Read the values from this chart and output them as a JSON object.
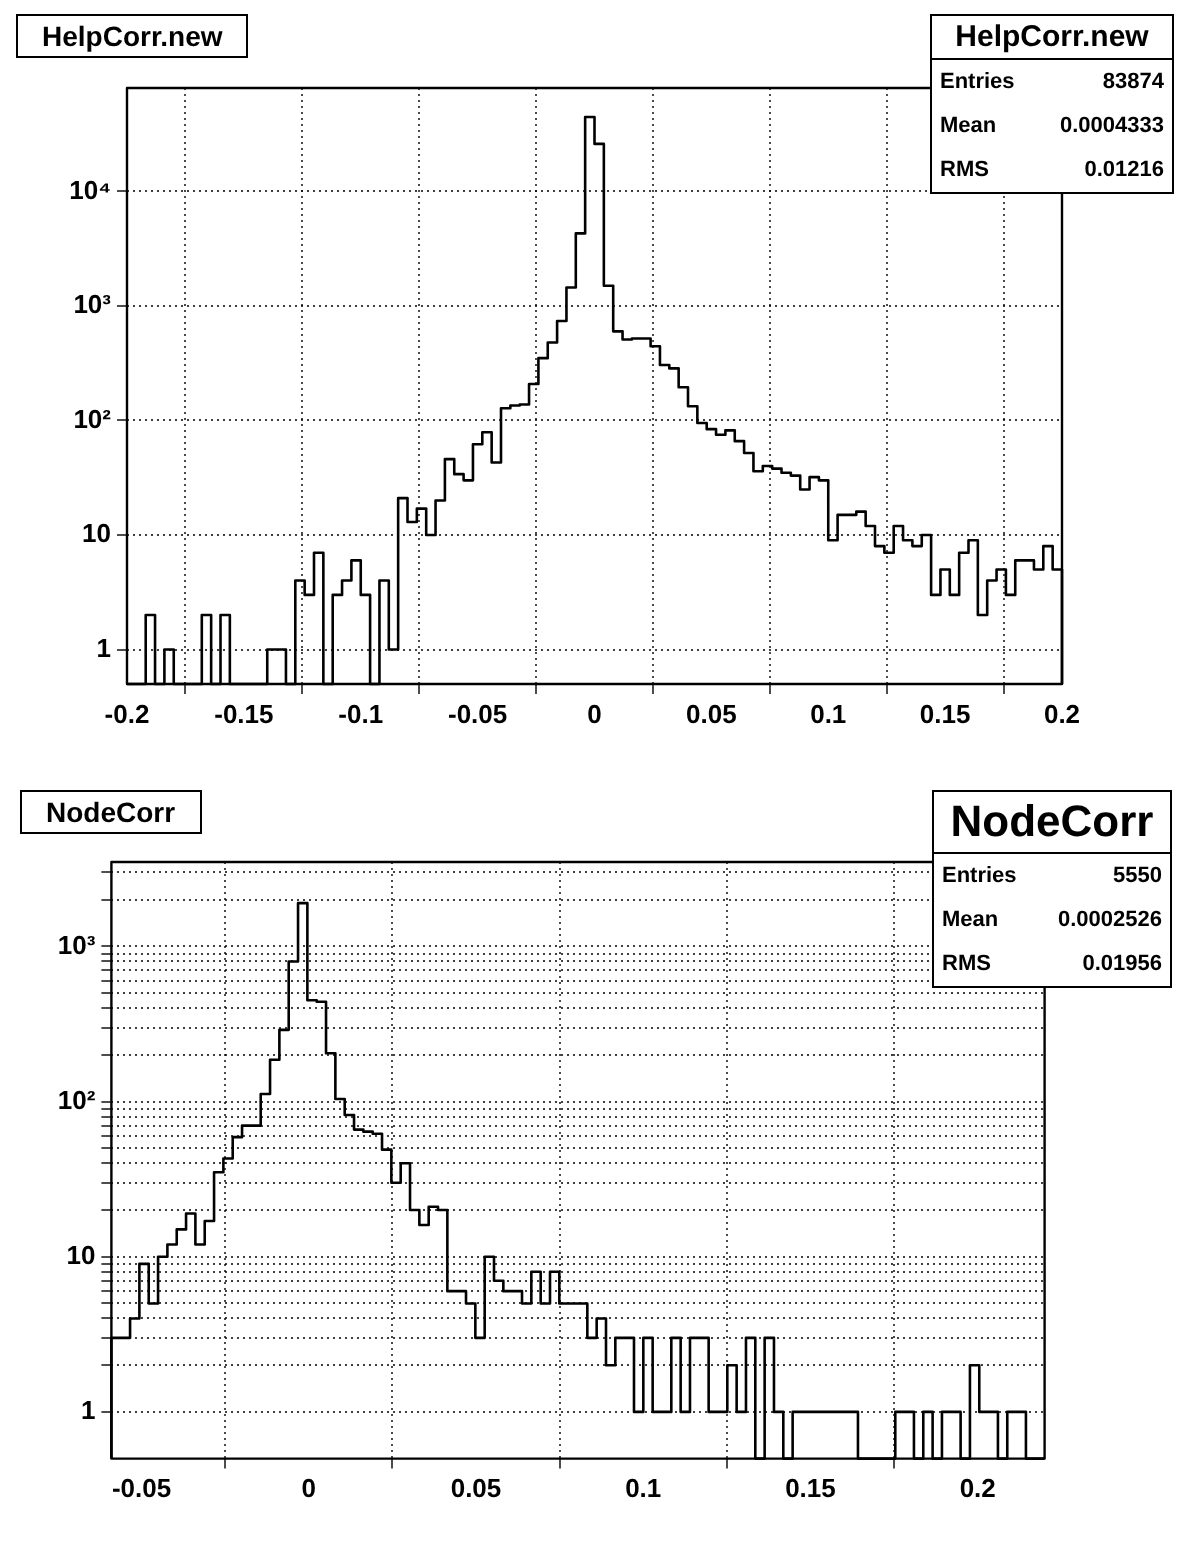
{
  "chart_data": [
    {
      "type": "histogram",
      "title": "HelpCorr.new",
      "color": "#000000",
      "log": "y",
      "grid": true,
      "annotations": [
        "HelpCorr.new",
        "Entries",
        "83874",
        "Mean",
        "0.0004333",
        "RMS",
        "0.01216"
      ],
      "bins": [
        -0.2,
        -0.196,
        -0.192,
        -0.188,
        -0.184,
        -0.18,
        -0.176,
        -0.172,
        -0.168,
        -0.164,
        -0.16,
        -0.156,
        -0.152,
        -0.148,
        -0.144,
        -0.14,
        -0.136,
        -0.132,
        -0.128,
        -0.124,
        -0.12,
        -0.116,
        -0.112,
        -0.108,
        -0.104,
        -0.1,
        -0.096,
        -0.092,
        -0.088,
        -0.084,
        -0.08,
        -0.076,
        -0.072,
        -0.068,
        -0.064,
        -0.06,
        -0.056,
        -0.052,
        -0.048,
        -0.044,
        -0.04,
        -0.036,
        -0.032,
        -0.028,
        -0.024,
        -0.02,
        -0.016,
        -0.012,
        -0.008,
        -0.004,
        0,
        0.004,
        0.008,
        0.012,
        0.016,
        0.02,
        0.024,
        0.028,
        0.032,
        0.036,
        0.04,
        0.044,
        0.048,
        0.052,
        0.056,
        0.06,
        0.064,
        0.068,
        0.072,
        0.076,
        0.08,
        0.084,
        0.088,
        0.092,
        0.096,
        0.1,
        0.104,
        0.108,
        0.112,
        0.116,
        0.12,
        0.124,
        0.128,
        0.132,
        0.136,
        0.14,
        0.144,
        0.148,
        0.152,
        0.156,
        0.16,
        0.164,
        0.168,
        0.172,
        0.176,
        0.18,
        0.184,
        0.188,
        0.192,
        0.196,
        0.2
      ],
      "values": [
        null,
        null,
        2,
        null,
        1,
        null,
        null,
        null,
        2,
        null,
        2,
        null,
        null,
        null,
        null,
        1,
        1,
        null,
        4,
        3,
        7,
        null,
        3,
        4,
        6,
        3,
        null,
        4,
        1,
        21,
        13,
        17,
        10,
        20,
        46,
        34,
        30,
        62,
        79,
        43,
        128,
        135,
        138,
        208,
        350,
        480,
        740,
        1450,
        4300,
        44600,
        26000,
        1500,
        600,
        510,
        520,
        520,
        445,
        305,
        285,
        195,
        133,
        95,
        84,
        75,
        82,
        66,
        52,
        36,
        40,
        38,
        35,
        33,
        25,
        32,
        30,
        9,
        15,
        15,
        16,
        12,
        8,
        7,
        12,
        9,
        8,
        10,
        3,
        5,
        3,
        7,
        9,
        2,
        4,
        5,
        3,
        6,
        6,
        5,
        8,
        5
      ],
      "xlim": [
        -0.2,
        0.2
      ],
      "xticks": [
        -0.2,
        -0.15,
        -0.1,
        -0.05,
        0,
        0.05,
        0.1,
        0.15,
        0.2
      ],
      "ylim": [
        0.5,
        80000
      ],
      "yticks": [
        {
          "value": 1,
          "label": "1"
        },
        {
          "value": 10,
          "label": "10"
        },
        {
          "value": 100,
          "label": "10²"
        },
        {
          "value": 1000,
          "label": "10³"
        },
        {
          "value": 10000,
          "label": "10⁴"
        }
      ]
    },
    {
      "type": "histogram",
      "title": "NodeCorr",
      "color": "#000000",
      "log": "y",
      "grid": true,
      "annotations": [
        "NodeCorr",
        "Entries",
        "5550",
        "Mean",
        "0.0002526",
        "RMS",
        "0.01956"
      ],
      "bins": [
        -0.059,
        -0.05621,
        -0.05342,
        -0.05063,
        -0.04784,
        -0.04505,
        -0.04226,
        -0.03947,
        -0.03668,
        -0.03389,
        -0.0311,
        -0.02831,
        -0.02552,
        -0.02273,
        -0.01994,
        -0.01715,
        -0.01436,
        -0.01157,
        -0.00878,
        -0.00599,
        -0.0032,
        -0.00041,
        0.00238,
        0.00517,
        0.00796,
        0.01075,
        0.01354,
        0.01633,
        0.01912,
        0.02191,
        0.0247,
        0.02749,
        0.03028,
        0.03307,
        0.03586,
        0.03865,
        0.04144,
        0.04423,
        0.04702,
        0.04981,
        0.0526,
        0.05539,
        0.05818,
        0.06097,
        0.06376,
        0.06655,
        0.06934,
        0.07213,
        0.07492,
        0.07771,
        0.0805,
        0.08329,
        0.08608,
        0.08887,
        0.09166,
        0.09445,
        0.09724,
        0.10003,
        0.10282,
        0.10561,
        0.1084,
        0.11119,
        0.11398,
        0.11677,
        0.11956,
        0.12235,
        0.12514,
        0.12793,
        0.13072,
        0.13351,
        0.1363,
        0.13909,
        0.14188,
        0.14467,
        0.14746,
        0.15025,
        0.15304,
        0.15583,
        0.15862,
        0.16141,
        0.1642,
        0.16699,
        0.16978,
        0.17257,
        0.17536,
        0.17815,
        0.18094,
        0.18373,
        0.18652,
        0.18931,
        0.1921,
        0.19489,
        0.19768,
        0.20047,
        0.20326,
        0.20605,
        0.20884,
        0.21163,
        0.21442,
        0.21721,
        0.22
      ],
      "values": [
        3,
        3,
        4,
        9,
        5,
        10,
        12,
        15,
        19,
        12,
        17,
        35,
        43,
        59,
        70,
        70,
        112,
        186,
        290,
        800,
        1900,
        450,
        440,
        205,
        104,
        82,
        66,
        64,
        62,
        49,
        30,
        40,
        20,
        16,
        21,
        20,
        6,
        6,
        5,
        3,
        10,
        7,
        6,
        6,
        5,
        8,
        5,
        8,
        5,
        5,
        5,
        3,
        4,
        2,
        3,
        3,
        1,
        3,
        1,
        1,
        3,
        1,
        3,
        3,
        1,
        1,
        2,
        1,
        3,
        null,
        3,
        1,
        null,
        1,
        1,
        1,
        1,
        1,
        1,
        1,
        null,
        null,
        null,
        null,
        1,
        1,
        null,
        1,
        null,
        1,
        1,
        null,
        2,
        1,
        1,
        null,
        1,
        1,
        null,
        null
      ],
      "xlim": [
        -0.059,
        0.22
      ],
      "xticks": [
        -0.05,
        0,
        0.05,
        0.1,
        0.15,
        0.2
      ],
      "ylim": [
        0.5,
        3500
      ],
      "yticks": [
        {
          "value": 1,
          "label": "1"
        },
        {
          "value": 2,
          "label": null
        },
        {
          "value": 3,
          "label": null
        },
        {
          "value": 4,
          "label": null
        },
        {
          "value": 5,
          "label": null
        },
        {
          "value": 6,
          "label": null
        },
        {
          "value": 7,
          "label": null
        },
        {
          "value": 8,
          "label": null
        },
        {
          "value": 9,
          "label": null
        },
        {
          "value": 10,
          "label": "10"
        },
        {
          "value": 20,
          "label": null
        },
        {
          "value": 30,
          "label": null
        },
        {
          "value": 40,
          "label": null
        },
        {
          "value": 50,
          "label": null
        },
        {
          "value": 60,
          "label": null
        },
        {
          "value": 70,
          "label": null
        },
        {
          "value": 80,
          "label": null
        },
        {
          "value": 90,
          "label": null
        },
        {
          "value": 100,
          "label": "10²"
        },
        {
          "value": 200,
          "label": null
        },
        {
          "value": 300,
          "label": null
        },
        {
          "value": 400,
          "label": null
        },
        {
          "value": 500,
          "label": null
        },
        {
          "value": 600,
          "label": null
        },
        {
          "value": 700,
          "label": null
        },
        {
          "value": 800,
          "label": null
        },
        {
          "value": 900,
          "label": null
        },
        {
          "value": 1000,
          "label": "10³"
        },
        {
          "value": 2000,
          "label": null
        },
        {
          "value": 3000,
          "label": null
        }
      ]
    }
  ]
}
